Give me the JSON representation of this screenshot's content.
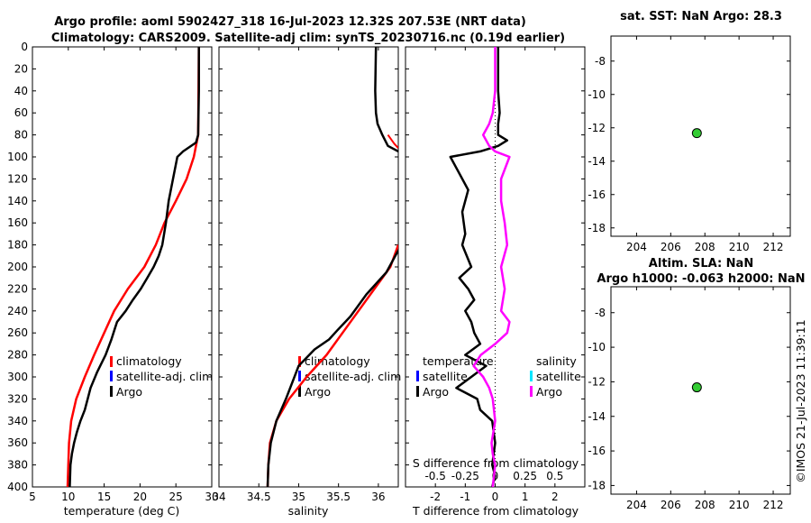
{
  "title": {
    "line1": "Argo profile: aoml 5902427_318 16-Jul-2023 12.32S 207.53E (NRT data)",
    "line2": "Climatology: CARS2009. Satellite-adj clim: synTS_20230716.nc (0.19d earlier)"
  },
  "watermark": "©IMOS 21-Jul-2023 11:39:11",
  "colors": {
    "climatology": "#ff0000",
    "satellite": "#0000ff",
    "argo": "#000000",
    "sat_s": "#00e5ff",
    "argo_s": "#ff00ff",
    "dot": "#33cc33"
  },
  "chart_data": [
    {
      "type": "line",
      "id": "temperature",
      "xlabel": "temperature (deg C)",
      "xlim": [
        5,
        30
      ],
      "xticks": [
        "5",
        "10",
        "15",
        "20",
        "25",
        "30"
      ],
      "ylim": [
        400,
        0
      ],
      "yticks": [
        "0",
        "20",
        "40",
        "60",
        "80",
        "100",
        "120",
        "140",
        "160",
        "180",
        "200",
        "220",
        "240",
        "260",
        "280",
        "300",
        "320",
        "340",
        "360",
        "380",
        "400"
      ],
      "legend": [
        "climatology",
        "satellite-adj. clim",
        "Argo"
      ],
      "series": [
        {
          "name": "climatology",
          "x": [
            28.2,
            28.1,
            27.5,
            26.5,
            25.0,
            23.4,
            22.2,
            20.6,
            18.3,
            16.4,
            15.0,
            13.6,
            12.3,
            11.1,
            10.4,
            10.1,
            9.9
          ],
          "y": [
            0,
            80,
            100,
            120,
            140,
            160,
            180,
            200,
            220,
            240,
            260,
            280,
            300,
            320,
            340,
            360,
            400
          ]
        },
        {
          "name": "Argo",
          "x": [
            28.2,
            28.2,
            28.1,
            27.8,
            26.0,
            25.2,
            24.6,
            24.0,
            23.6,
            23.1,
            22.6,
            21.9,
            21.0,
            20.1,
            19.0,
            18.0,
            16.8,
            16.5,
            16.0,
            15.2,
            14.0,
            13.1,
            12.7,
            12.3,
            11.7,
            11.2,
            10.8,
            10.5,
            10.3,
            10.2
          ],
          "y": [
            0,
            40,
            80,
            87,
            95,
            100,
            120,
            140,
            160,
            180,
            190,
            200,
            210,
            220,
            230,
            240,
            250,
            256,
            266,
            280,
            296,
            310,
            320,
            330,
            340,
            350,
            360,
            370,
            380,
            400
          ]
        }
      ]
    },
    {
      "type": "line",
      "id": "salinity",
      "xlabel": "salinity",
      "xlim": [
        34,
        36.25
      ],
      "xticks": [
        "34",
        "34.5",
        "35",
        "35.5",
        "36"
      ],
      "ylim": [
        400,
        0
      ],
      "legend": [
        "climatology",
        "satellite-adj. clim",
        "Argo"
      ],
      "series": [
        {
          "name": "climatology",
          "x": [
            36.25,
            36.15,
            35.95,
            35.75,
            35.55,
            35.35,
            35.1,
            34.88,
            34.72,
            34.64,
            34.62,
            34.61
          ],
          "y": [
            180,
            200,
            220,
            240,
            260,
            280,
            300,
            320,
            340,
            360,
            380,
            400
          ]
        },
        {
          "name": "Argo",
          "x": [
            36.25,
            36.1,
            35.85,
            35.65,
            35.48,
            35.38,
            35.2,
            35.0,
            34.92,
            34.84,
            34.72,
            34.65,
            34.62,
            34.61
          ],
          "y": [
            185,
            205,
            225,
            245,
            258,
            266,
            275,
            290,
            305,
            320,
            340,
            360,
            380,
            400
          ]
        },
        {
          "name": "Argo-surface",
          "x": [
            35.97,
            35.96,
            35.97,
            35.99,
            36.05,
            36.12,
            36.25
          ],
          "y": [
            0,
            40,
            60,
            70,
            80,
            90,
            95
          ]
        }
      ]
    },
    {
      "type": "line",
      "id": "difference",
      "xlabel": "T difference from climatology",
      "xlim": [
        -3,
        3
      ],
      "xticks": [
        "-2",
        "-1",
        "0",
        "1",
        "2"
      ],
      "top_label": "S difference from climatology",
      "top_ticks": [
        "-0.5",
        "-0.25",
        "0",
        "0.25",
        "0.5"
      ],
      "ylim": [
        400,
        0
      ],
      "legend_left": {
        "header": "temperature",
        "items": [
          "satellite",
          "Argo"
        ]
      },
      "legend_right": {
        "header": "salinity",
        "items": [
          "satellite",
          "Argo"
        ]
      },
      "series": [
        {
          "name": "T-Argo",
          "x": [
            0.1,
            0.1,
            0.15,
            0.1,
            0.1,
            0.4,
            0.1,
            -0.5,
            -1.5,
            -1.3,
            -0.9,
            -1.1,
            -1.0,
            -1.1,
            -0.8,
            -1.2,
            -0.9,
            -0.7,
            -1.0,
            -0.8,
            -0.7,
            -0.6,
            -0.5,
            -1.0,
            -0.3,
            -0.8,
            -1.3,
            -0.6,
            -0.5,
            -0.1,
            0.0,
            -0.1,
            0.0,
            -0.1
          ],
          "y": [
            0,
            40,
            60,
            70,
            80,
            85,
            90,
            95,
            100,
            110,
            130,
            150,
            170,
            180,
            200,
            210,
            220,
            230,
            240,
            250,
            260,
            265,
            270,
            280,
            290,
            300,
            310,
            320,
            330,
            340,
            360,
            380,
            390,
            400
          ]
        },
        {
          "name": "S-Argo",
          "x": [
            0.0,
            0.0,
            -0.02,
            -0.05,
            -0.1,
            -0.05,
            0.0,
            0.12,
            0.05,
            0.05,
            0.08,
            0.1,
            0.05,
            0.08,
            0.05,
            0.12,
            0.1,
            0.0,
            -0.12,
            -0.18,
            -0.1,
            -0.05,
            -0.02,
            0.0,
            -0.03,
            -0.02,
            0.0,
            -0.01,
            -0.02
          ],
          "y": [
            0,
            40,
            60,
            70,
            80,
            90,
            95,
            100,
            120,
            140,
            160,
            180,
            200,
            220,
            240,
            250,
            260,
            270,
            280,
            290,
            300,
            310,
            320,
            340,
            360,
            370,
            380,
            390,
            400
          ]
        }
      ]
    },
    {
      "type": "scatter",
      "id": "sst-map",
      "title": "sat. SST: NaN Argo: 28.3",
      "xlim": [
        202.5,
        213
      ],
      "xticks": [
        "204",
        "206",
        "208",
        "210",
        "212"
      ],
      "ylim": [
        -18.5,
        -6.5
      ],
      "yticks": [
        "-8",
        "-10",
        "-12",
        "-14",
        "-16",
        "-18"
      ],
      "points": [
        {
          "x": 207.53,
          "y": -12.32
        }
      ]
    },
    {
      "type": "scatter",
      "id": "sla-map",
      "title": "Altim. SLA: NaN",
      "subtitle": "Argo h1000: -0.063 h2000: NaN",
      "xlim": [
        202.5,
        213
      ],
      "xticks": [
        "204",
        "206",
        "208",
        "210",
        "212"
      ],
      "ylim": [
        -18.5,
        -6.5
      ],
      "yticks": [
        "-8",
        "-10",
        "-12",
        "-14",
        "-16",
        "-18"
      ],
      "points": [
        {
          "x": 207.53,
          "y": -12.32
        }
      ]
    }
  ]
}
